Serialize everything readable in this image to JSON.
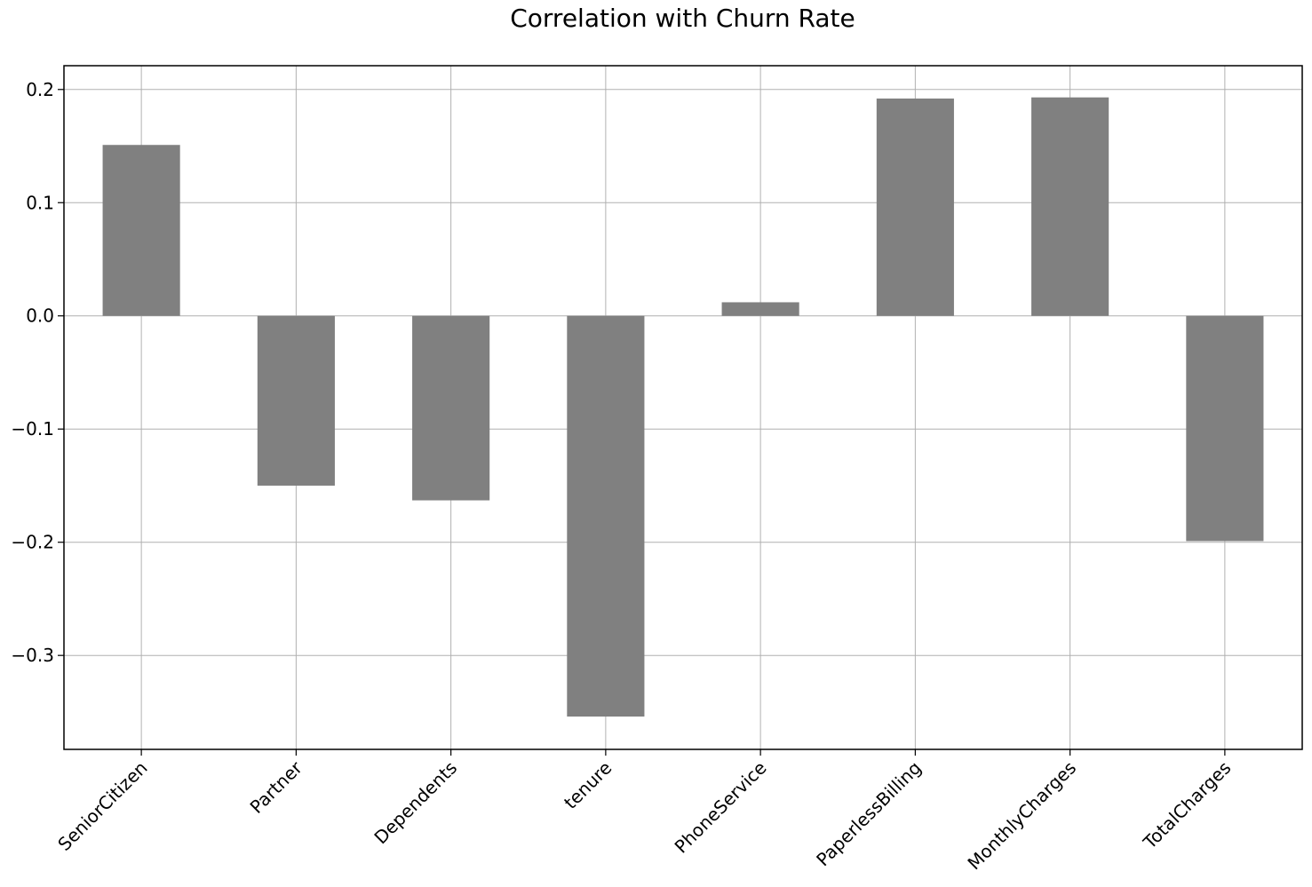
{
  "chart_data": {
    "type": "bar",
    "title": "Correlation with Churn Rate",
    "xlabel": "",
    "ylabel": "",
    "categories": [
      "SeniorCitizen",
      "Partner",
      "Dependents",
      "tenure",
      "PhoneService",
      "PaperlessBilling",
      "MonthlyCharges",
      "TotalCharges"
    ],
    "values": [
      0.151,
      -0.15,
      -0.163,
      -0.354,
      0.012,
      0.192,
      0.193,
      -0.199
    ],
    "ylim": [
      -0.383,
      0.221
    ],
    "yticks": [
      0.2,
      0.1,
      0.0,
      -0.1,
      -0.2,
      -0.3
    ],
    "ytick_labels": [
      "0.2",
      "0.1",
      "0.0",
      "−0.1",
      "−0.2",
      "−0.3"
    ],
    "grid": true,
    "legend": "none",
    "bar_color": "#808080"
  }
}
